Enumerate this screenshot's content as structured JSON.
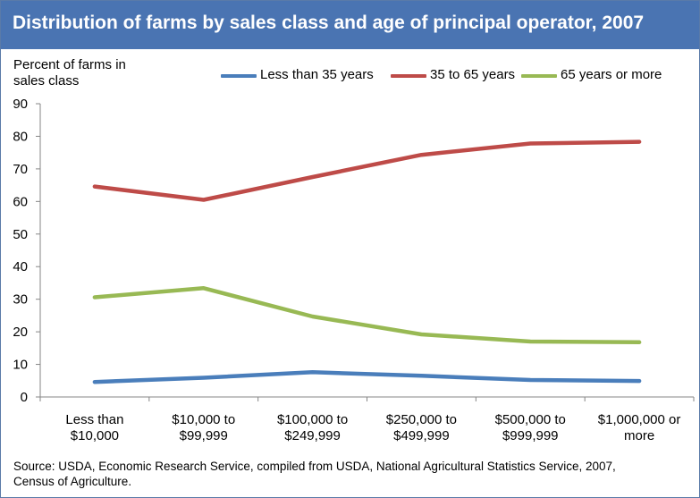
{
  "chart_data": {
    "type": "line",
    "title": "Distribution of farms by sales class and age of principal operator, 2007",
    "ylabel": "Percent of farms in sales class",
    "xlabel": "",
    "ylim": [
      0,
      90
    ],
    "yticks": [
      0,
      10,
      20,
      30,
      40,
      50,
      60,
      70,
      80,
      90
    ],
    "grid": false,
    "legend_position": "top",
    "categories": [
      [
        "Less than",
        "$10,000"
      ],
      [
        "$10,000 to",
        "$99,999"
      ],
      [
        "$100,000 to",
        "$249,999"
      ],
      [
        "$250,000 to",
        "$499,999"
      ],
      [
        "$500,000 to",
        "$999,999"
      ],
      [
        "$1,000,000 or",
        "more"
      ]
    ],
    "series": [
      {
        "name": "Less than 35 years",
        "color": "#4a7ebb",
        "values": [
          4.6,
          5.9,
          7.6,
          6.5,
          5.2,
          4.9
        ]
      },
      {
        "name": "35 to 65 years",
        "color": "#be4b48",
        "values": [
          64.6,
          60.5,
          67.5,
          74.3,
          77.8,
          78.3
        ]
      },
      {
        "name": "65 years or more",
        "color": "#98b954",
        "values": [
          30.6,
          33.4,
          24.7,
          19.2,
          17.0,
          16.8
        ]
      }
    ]
  },
  "source": "Source:  USDA, Economic Research Service, compiled from USDA, National Agricultural Statistics Service, 2007, Census of Agriculture.",
  "colors": {
    "title_bar": "#4a74b2",
    "frame_border": "#5a7aa8",
    "axis": "#868686"
  }
}
